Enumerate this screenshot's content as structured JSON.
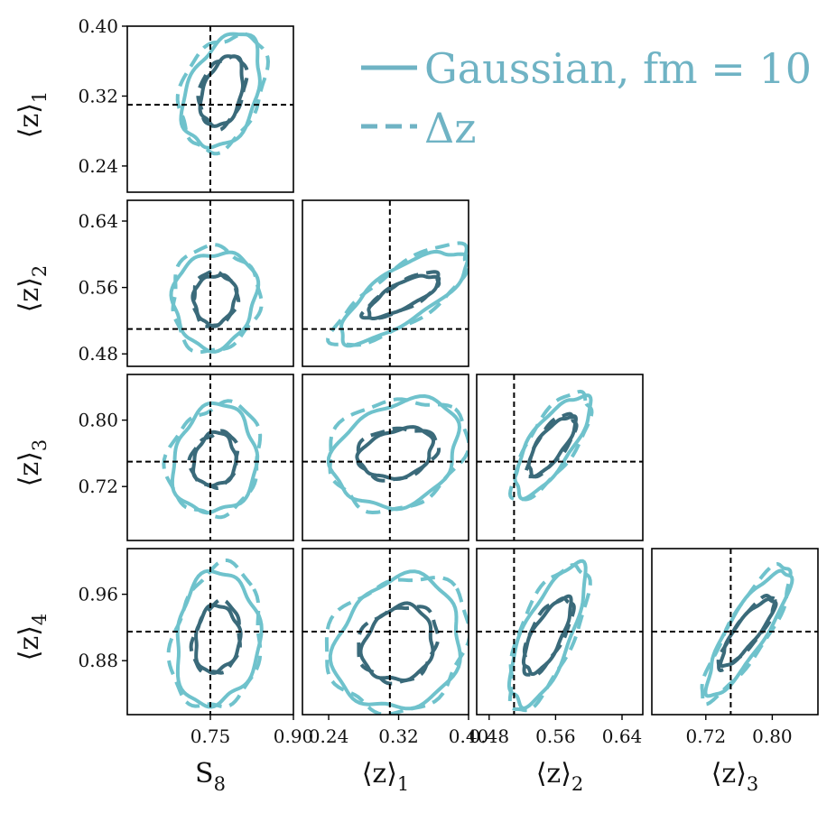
{
  "chart_data": {
    "type": "corner-contour",
    "parameters": [
      {
        "key": "S8",
        "label_main": "S",
        "label_sub": "8",
        "truth": 0.75,
        "range": [
          0.6,
          0.9
        ],
        "ticks": [
          "0.75",
          "0.90"
        ],
        "tick_values": [
          0.75,
          0.9
        ]
      },
      {
        "key": "z1",
        "label_main": "⟨z⟩",
        "label_sub": "1",
        "truth": 0.31,
        "range": [
          0.21,
          0.4
        ],
        "ticks": [
          "0.24",
          "0.32",
          "0.40"
        ],
        "tick_values": [
          0.24,
          0.32,
          0.4
        ]
      },
      {
        "key": "z2",
        "label_main": "⟨z⟩",
        "label_sub": "2",
        "truth": 0.51,
        "range": [
          0.465,
          0.665
        ],
        "ticks": [
          "0.48",
          "0.56",
          "0.64"
        ],
        "tick_values": [
          0.48,
          0.56,
          0.64
        ]
      },
      {
        "key": "z3",
        "label_main": "⟨z⟩",
        "label_sub": "3",
        "truth": 0.75,
        "range": [
          0.655,
          0.855
        ],
        "ticks": [
          "0.72",
          "0.80"
        ],
        "tick_values": [
          0.72,
          0.8
        ]
      },
      {
        "key": "z4",
        "label_main": "⟨z⟩",
        "label_sub": "4",
        "truth": 0.915,
        "range": [
          0.815,
          1.015
        ],
        "ticks": [
          "0.88",
          "0.96"
        ],
        "tick_values": [
          0.88,
          0.96
        ]
      }
    ],
    "legend": [
      {
        "label": "Gaussian, fm = 10",
        "style": "solid"
      },
      {
        "label": "Δz",
        "style": "dashed"
      }
    ],
    "colors": {
      "outer_contour": "#6fc2cc",
      "inner_contour": "#3a6a7a",
      "truth_line": "#000000",
      "legend_text": "#6fb3c4"
    },
    "legend_placement": "top-right",
    "contour_levels": [
      "68%",
      "95%"
    ],
    "panels": [
      {
        "x": "S8",
        "y": "z1",
        "center": [
          0.772,
          0.325
        ],
        "outer": [
          0.07,
          0.065
        ],
        "inner": [
          0.038,
          0.04
        ],
        "rho": 0.35
      },
      {
        "x": "S8",
        "y": "z2",
        "center": [
          0.758,
          0.546
        ],
        "outer": [
          0.075,
          0.058
        ],
        "inner": [
          0.038,
          0.03
        ],
        "rho": 0.1
      },
      {
        "x": "z1",
        "y": "z2",
        "center": [
          0.325,
          0.55
        ],
        "outer": [
          0.072,
          0.055
        ],
        "inner": [
          0.04,
          0.025
        ],
        "rho": 0.75
      },
      {
        "x": "S8",
        "y": "z3",
        "center": [
          0.758,
          0.752
        ],
        "outer": [
          0.075,
          0.065
        ],
        "inner": [
          0.038,
          0.032
        ],
        "rho": 0.1
      },
      {
        "x": "z1",
        "y": "z3",
        "center": [
          0.318,
          0.76
        ],
        "outer": [
          0.072,
          0.065
        ],
        "inner": [
          0.042,
          0.03
        ],
        "rho": 0.25
      },
      {
        "x": "z2",
        "y": "z3",
        "center": [
          0.555,
          0.77
        ],
        "outer": [
          0.045,
          0.06
        ],
        "inner": [
          0.028,
          0.035
        ],
        "rho": 0.75
      },
      {
        "x": "S8",
        "y": "z4",
        "center": [
          0.762,
          0.906
        ],
        "outer": [
          0.075,
          0.08
        ],
        "inner": [
          0.04,
          0.04
        ],
        "rho": 0.1
      },
      {
        "x": "z1",
        "y": "z4",
        "center": [
          0.32,
          0.9
        ],
        "outer": [
          0.072,
          0.08
        ],
        "inner": [
          0.04,
          0.045
        ],
        "rho": 0.15
      },
      {
        "x": "z2",
        "y": "z4",
        "center": [
          0.55,
          0.91
        ],
        "outer": [
          0.045,
          0.085
        ],
        "inner": [
          0.028,
          0.045
        ],
        "rho": 0.72
      },
      {
        "x": "z3",
        "y": "z4",
        "center": [
          0.77,
          0.915
        ],
        "outer": [
          0.05,
          0.075
        ],
        "inner": [
          0.032,
          0.04
        ],
        "rho": 0.85
      }
    ]
  }
}
